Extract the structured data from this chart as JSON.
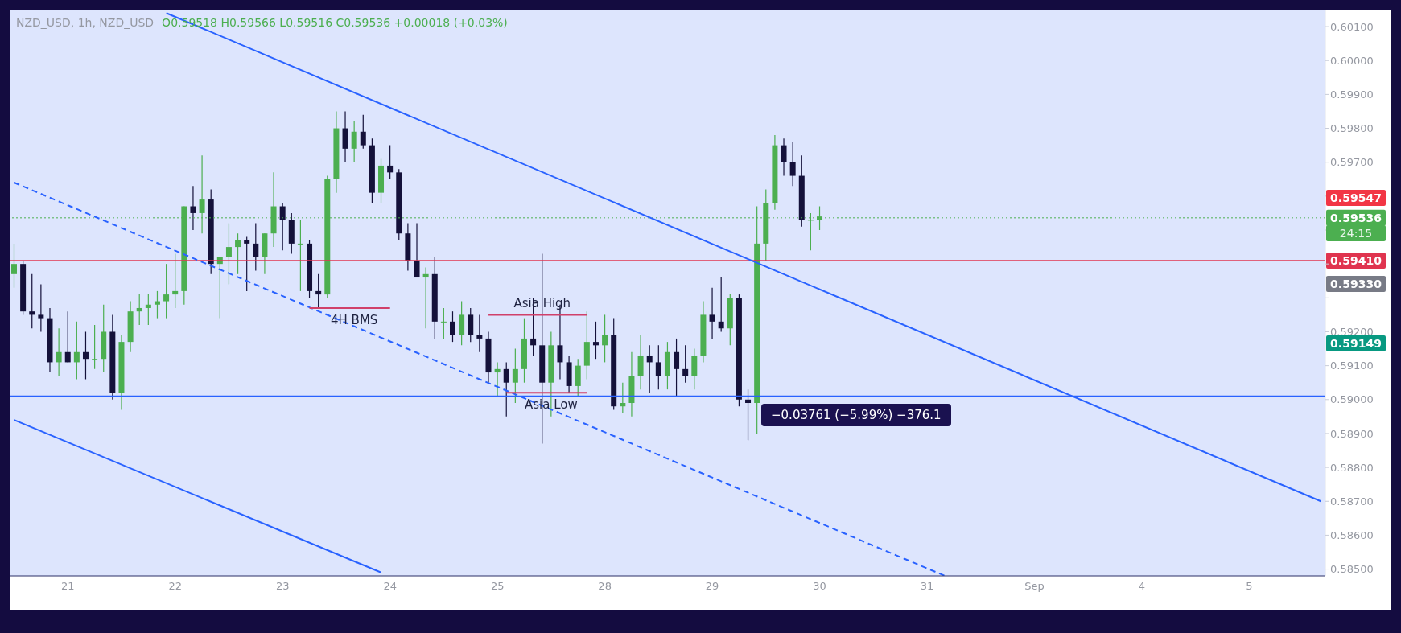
{
  "chart_data": {
    "type": "candlestick",
    "title": "NZD_USD, 1h, NZD_USD",
    "subtitle": "O0.59518 H0.59566 L0.59516 C0.59536 +0.00018 (+0.03%)",
    "categories": [
      null,
      null,
      null,
      null,
      null,
      null,
      "21",
      null,
      null,
      null,
      null,
      null,
      null,
      null,
      null,
      null,
      null,
      null,
      "22",
      null,
      null,
      null,
      null,
      null,
      null,
      null,
      null,
      null,
      null,
      null,
      "23",
      null,
      null,
      null,
      null,
      null,
      null,
      null,
      null,
      null,
      null,
      null,
      "24",
      null,
      null,
      null,
      null,
      null,
      null,
      null,
      null,
      null,
      null,
      null,
      "25",
      null,
      null,
      null,
      null,
      null,
      null,
      null,
      null,
      null,
      null,
      null,
      "28",
      null,
      null,
      null,
      null,
      null,
      null,
      null,
      null,
      null,
      null,
      null,
      "29",
      null,
      null,
      null,
      null,
      null,
      null,
      null,
      null,
      null,
      null,
      null,
      "30",
      null,
      null,
      null,
      null,
      null,
      null,
      null,
      null,
      null,
      null,
      null,
      "31",
      null,
      null,
      null,
      null,
      null,
      null,
      null,
      null,
      null,
      null,
      null,
      "Sep",
      null,
      null,
      null,
      null,
      null,
      null,
      null,
      null,
      null,
      null,
      null,
      "4",
      null,
      null,
      null,
      null,
      null,
      null,
      null,
      null,
      null,
      null,
      null,
      "5",
      null,
      null,
      null,
      null,
      null,
      null,
      null,
      null
    ],
    "ohlc": [
      [
        0.5937,
        0.5946,
        0.5933,
        0.594
      ],
      [
        0.594,
        0.5941,
        0.5925,
        0.5926
      ],
      [
        0.5926,
        0.5937,
        0.5921,
        0.5925
      ],
      [
        0.5925,
        0.5934,
        0.592,
        0.5924
      ],
      [
        0.5924,
        0.5927,
        0.5908,
        0.5911
      ],
      [
        0.5911,
        0.5921,
        0.5907,
        0.5914
      ],
      [
        0.5914,
        0.5926,
        0.5911,
        0.5911
      ],
      [
        0.5911,
        0.5923,
        0.5906,
        0.5914
      ],
      [
        0.5914,
        0.592,
        0.5906,
        0.5912
      ],
      [
        0.5912,
        0.5922,
        0.5909,
        0.5912
      ],
      [
        0.5912,
        0.5928,
        0.5908,
        0.592
      ],
      [
        0.592,
        0.5925,
        0.59,
        0.5902
      ],
      [
        0.5902,
        0.5919,
        0.5897,
        0.5917
      ],
      [
        0.5917,
        0.5929,
        0.5914,
        0.5926
      ],
      [
        0.5926,
        0.5931,
        0.5922,
        0.5927
      ],
      [
        0.5927,
        0.5931,
        0.5922,
        0.5928
      ],
      [
        0.5928,
        0.5932,
        0.5924,
        0.5929
      ],
      [
        0.5929,
        0.594,
        0.5924,
        0.5931
      ],
      [
        0.5931,
        0.5943,
        0.5927,
        0.5932
      ],
      [
        0.5932,
        0.5957,
        0.5928,
        0.5957
      ],
      [
        0.5957,
        0.5963,
        0.595,
        0.5955
      ],
      [
        0.5955,
        0.5972,
        0.5949,
        0.5959
      ],
      [
        0.5959,
        0.5962,
        0.5937,
        0.594
      ],
      [
        0.594,
        0.5942,
        0.5924,
        0.5942
      ],
      [
        0.5942,
        0.5952,
        0.5934,
        0.5945
      ],
      [
        0.5945,
        0.5949,
        0.5937,
        0.5947
      ],
      [
        0.5947,
        0.5948,
        0.5932,
        0.5946
      ],
      [
        0.5946,
        0.5952,
        0.5938,
        0.5942
      ],
      [
        0.5942,
        0.5949,
        0.5937,
        0.5949
      ],
      [
        0.5949,
        0.5967,
        0.5945,
        0.5957
      ],
      [
        0.5957,
        0.5958,
        0.5944,
        0.5953
      ],
      [
        0.5953,
        0.5955,
        0.5943,
        0.5946
      ],
      [
        0.5946,
        0.5953,
        0.5932,
        0.5946
      ],
      [
        0.5946,
        0.5947,
        0.593,
        0.5932
      ],
      [
        0.5932,
        0.5937,
        0.5927,
        0.5931
      ],
      [
        0.5931,
        0.5966,
        0.593,
        0.5965
      ],
      [
        0.5965,
        0.5985,
        0.5961,
        0.598
      ],
      [
        0.598,
        0.5985,
        0.597,
        0.5974
      ],
      [
        0.5974,
        0.5982,
        0.597,
        0.5979
      ],
      [
        0.5979,
        0.5984,
        0.5974,
        0.5975
      ],
      [
        0.5975,
        0.5977,
        0.5958,
        0.5961
      ],
      [
        0.5961,
        0.5971,
        0.5958,
        0.5969
      ],
      [
        0.5969,
        0.5975,
        0.5965,
        0.5967
      ],
      [
        0.5967,
        0.5968,
        0.5947,
        0.5949
      ],
      [
        0.5949,
        0.5952,
        0.5938,
        0.5941
      ],
      [
        0.5941,
        0.5952,
        0.5936,
        0.5936
      ],
      [
        0.5936,
        0.5939,
        0.5921,
        0.5937
      ],
      [
        0.5937,
        0.5942,
        0.5918,
        0.5923
      ],
      [
        0.5923,
        0.5927,
        0.5918,
        0.5923
      ],
      [
        0.5923,
        0.5926,
        0.5917,
        0.5919
      ],
      [
        0.5919,
        0.5929,
        0.5916,
        0.5925
      ],
      [
        0.5925,
        0.5927,
        0.5917,
        0.5919
      ],
      [
        0.5919,
        0.5925,
        0.5914,
        0.5918
      ],
      [
        0.5918,
        0.592,
        0.5905,
        0.5908
      ],
      [
        0.5908,
        0.5911,
        0.5901,
        0.5909
      ],
      [
        0.5909,
        0.5911,
        0.5895,
        0.5905
      ],
      [
        0.5905,
        0.5915,
        0.5899,
        0.5909
      ],
      [
        0.5909,
        0.5924,
        0.5905,
        0.5918
      ],
      [
        0.5918,
        0.593,
        0.5913,
        0.5916
      ],
      [
        0.5916,
        0.5943,
        0.5887,
        0.5905
      ],
      [
        0.5905,
        0.592,
        0.5895,
        0.5916
      ],
      [
        0.5916,
        0.5928,
        0.5906,
        0.5911
      ],
      [
        0.5911,
        0.5913,
        0.5902,
        0.5904
      ],
      [
        0.5904,
        0.5912,
        0.5901,
        0.591
      ],
      [
        0.591,
        0.5926,
        0.5906,
        0.5917
      ],
      [
        0.5917,
        0.5923,
        0.5912,
        0.5916
      ],
      [
        0.5916,
        0.5925,
        0.5911,
        0.5919
      ],
      [
        0.5919,
        0.5924,
        0.5897,
        0.5898
      ],
      [
        0.5898,
        0.5905,
        0.5896,
        0.5899
      ],
      [
        0.5899,
        0.5914,
        0.5895,
        0.5907
      ],
      [
        0.5907,
        0.5919,
        0.5903,
        0.5913
      ],
      [
        0.5913,
        0.5916,
        0.5902,
        0.5911
      ],
      [
        0.5911,
        0.5916,
        0.5903,
        0.5907
      ],
      [
        0.5907,
        0.5917,
        0.5903,
        0.5914
      ],
      [
        0.5914,
        0.5918,
        0.5901,
        0.5909
      ],
      [
        0.5909,
        0.5916,
        0.5905,
        0.5907
      ],
      [
        0.5907,
        0.5915,
        0.5903,
        0.5913
      ],
      [
        0.5913,
        0.5929,
        0.5911,
        0.5925
      ],
      [
        0.5925,
        0.5933,
        0.5918,
        0.5923
      ],
      [
        0.5923,
        0.5936,
        0.592,
        0.5921
      ],
      [
        0.5921,
        0.5931,
        0.5916,
        0.593
      ],
      [
        0.593,
        0.5931,
        0.5898,
        0.59
      ],
      [
        0.59,
        0.5903,
        0.5888,
        0.5899
      ],
      [
        0.5899,
        0.5957,
        0.589,
        0.5946
      ],
      [
        0.5946,
        0.5962,
        0.5941,
        0.5958
      ],
      [
        0.5958,
        0.5978,
        0.5956,
        0.5975
      ],
      [
        0.5975,
        0.5977,
        0.5966,
        0.597
      ],
      [
        0.597,
        0.5976,
        0.5963,
        0.5966
      ],
      [
        0.5966,
        0.5972,
        0.5951,
        0.5953
      ],
      [
        0.5953,
        0.5955,
        0.5944,
        0.5953
      ],
      [
        0.5953,
        0.5957,
        0.595,
        0.5954
      ],
      null,
      null,
      null,
      null,
      null,
      null,
      null,
      null,
      null,
      null,
      null,
      null,
      null,
      null,
      null,
      null,
      null,
      null,
      null,
      null,
      null,
      null,
      null,
      null,
      null,
      null,
      null,
      null,
      null,
      null,
      null,
      null,
      null,
      null,
      null,
      null,
      null,
      null,
      null,
      null,
      null,
      null,
      null,
      null,
      null,
      null,
      null,
      null,
      null,
      null,
      null,
      null,
      null,
      null,
      null,
      null
    ],
    "colors": [
      "#4caf50",
      "#14113a",
      "#14113a",
      "#14113a",
      "#14113a",
      "#4caf50",
      "#14113a",
      "#4caf50",
      "#14113a",
      "#4caf50",
      "#4caf50",
      "#14113a",
      "#4caf50",
      "#4caf50",
      "#4caf50",
      "#4caf50",
      "#4caf50",
      "#4caf50",
      "#4caf50",
      "#4caf50",
      "#14113a",
      "#4caf50",
      "#14113a",
      "#4caf50",
      "#4caf50",
      "#4caf50",
      "#14113a",
      "#14113a",
      "#4caf50",
      "#4caf50",
      "#14113a",
      "#14113a",
      "#4caf50",
      "#14113a",
      "#14113a",
      "#4caf50",
      "#4caf50",
      "#14113a",
      "#4caf50",
      "#14113a",
      "#14113a",
      "#4caf50",
      "#14113a",
      "#14113a",
      "#14113a",
      "#14113a",
      "#4caf50",
      "#14113a",
      "#4caf50",
      "#14113a",
      "#4caf50",
      "#14113a",
      "#14113a",
      "#14113a",
      "#4caf50",
      "#14113a",
      "#4caf50",
      "#4caf50",
      "#14113a",
      "#14113a",
      "#4caf50",
      "#14113a",
      "#14113a",
      "#4caf50",
      "#4caf50",
      "#14113a",
      "#4caf50",
      "#14113a",
      "#4caf50",
      "#4caf50",
      "#4caf50",
      "#14113a",
      "#14113a",
      "#4caf50",
      "#14113a",
      "#14113a",
      "#4caf50",
      "#4caf50",
      "#14113a",
      "#14113a",
      "#4caf50",
      "#14113a",
      "#14113a",
      "#4caf50",
      "#4caf50",
      "#4caf50",
      "#14113a",
      "#14113a",
      "#14113a",
      "#4caf50",
      "#4caf50",
      null,
      null,
      null,
      null,
      null,
      null,
      null,
      null,
      null,
      null,
      null,
      null,
      null,
      null,
      null,
      null,
      null,
      null,
      null,
      null,
      null,
      null,
      null,
      null,
      null,
      null,
      null,
      null,
      null,
      null,
      null,
      null,
      null,
      null,
      null,
      null,
      null,
      null,
      null,
      null,
      null,
      null,
      null,
      null,
      null,
      null,
      null,
      null,
      null,
      null,
      null,
      null,
      null,
      null,
      null,
      null
    ],
    "series": [
      {
        "type": "line",
        "color": "#2962ff",
        "line_style": "solid",
        "values": [
          null,
          null,
          null,
          null,
          null,
          null,
          null,
          null,
          null,
          null,
          null,
          null,
          null,
          null,
          null,
          null,
          null,
          0.6014,
          null,
          null,
          null,
          null,
          null,
          null,
          null,
          null,
          null,
          null,
          null,
          null,
          null,
          null,
          null,
          null,
          null,
          null,
          null,
          null,
          null,
          null,
          null,
          null,
          null,
          null,
          null,
          null,
          null,
          null,
          null,
          null,
          null,
          null,
          null,
          null,
          null,
          null,
          null,
          null,
          null,
          null,
          null,
          null,
          null,
          null,
          null,
          null,
          null,
          null,
          null,
          null,
          null,
          null,
          null,
          null,
          null,
          null,
          null,
          null,
          null,
          null,
          null,
          null,
          null,
          null,
          null,
          null,
          null,
          null,
          null,
          null,
          null,
          null,
          null,
          null,
          null,
          null,
          null,
          null,
          null,
          null,
          null,
          null,
          null,
          null,
          null,
          null,
          null,
          null,
          null,
          null,
          null,
          null,
          null,
          null,
          null,
          null,
          null,
          null,
          null,
          null,
          null,
          null,
          null,
          null,
          null,
          null,
          null,
          null,
          null,
          null,
          null,
          null,
          null,
          null,
          null,
          null,
          null,
          null,
          null,
          null,
          null,
          null,
          null,
          null,
          null,
          null,
          0.587
        ]
      },
      {
        "type": "line",
        "color": "#2962ff",
        "line_style": "solid",
        "values": [
          0.5894,
          null,
          null,
          null,
          null,
          null,
          null,
          null,
          null,
          null,
          null,
          null,
          null,
          null,
          null,
          null,
          null,
          null,
          null,
          null,
          null,
          null,
          null,
          null,
          null,
          null,
          null,
          null,
          null,
          null,
          null,
          null,
          null,
          null,
          null,
          null,
          null,
          null,
          null,
          null,
          null,
          0.5849,
          null,
          null,
          null,
          null,
          null,
          null,
          null,
          null,
          null,
          null,
          null,
          null,
          null,
          null,
          null,
          null,
          null,
          null,
          null,
          null,
          null,
          null,
          null,
          null,
          null,
          null,
          null,
          null,
          null,
          null,
          null,
          null,
          null,
          null,
          null,
          null,
          null,
          null,
          null,
          null,
          null,
          null,
          null,
          null,
          null,
          null,
          null,
          null,
          null,
          null,
          null,
          null,
          null,
          null,
          null,
          null,
          null,
          null,
          null,
          null,
          null,
          null,
          null,
          null,
          null,
          null,
          null,
          null,
          null,
          null,
          null,
          null,
          null,
          null,
          null,
          null,
          null,
          null,
          null,
          null,
          null,
          null,
          null,
          null,
          null,
          null,
          null,
          null,
          null,
          null,
          null,
          null,
          null,
          null,
          null,
          null,
          null,
          null,
          null,
          null,
          null,
          null,
          null,
          null,
          null
        ]
      },
      {
        "type": "line",
        "color": "#2962ff",
        "line_style": "dashed",
        "values": [
          0.5964,
          null,
          null,
          null,
          null,
          null,
          null,
          null,
          null,
          null,
          null,
          null,
          null,
          null,
          null,
          null,
          null,
          null,
          null,
          null,
          null,
          null,
          null,
          null,
          null,
          null,
          null,
          null,
          null,
          null,
          null,
          null,
          null,
          null,
          null,
          null,
          null,
          null,
          null,
          null,
          null,
          null,
          null,
          null,
          null,
          null,
          null,
          null,
          null,
          null,
          null,
          null,
          null,
          null,
          null,
          null,
          null,
          null,
          null,
          null,
          null,
          null,
          null,
          null,
          null,
          null,
          null,
          null,
          null,
          null,
          null,
          null,
          null,
          null,
          null,
          null,
          null,
          null,
          null,
          null,
          null,
          null,
          null,
          null,
          null,
          null,
          null,
          null,
          null,
          null,
          null,
          null,
          null,
          null,
          null,
          null,
          null,
          null,
          null,
          null,
          null,
          null,
          null,
          null,
          0.5848,
          null,
          null,
          null,
          null,
          null,
          null,
          null,
          null,
          null,
          null,
          null,
          null,
          null,
          null,
          null,
          null,
          null,
          null,
          null,
          null,
          null,
          null,
          null,
          null,
          null,
          null,
          null,
          null,
          null,
          null,
          null,
          null,
          null,
          null,
          null,
          null,
          null,
          null,
          null,
          null,
          null,
          null
        ]
      },
      {
        "type": "line",
        "name": "4H BMS",
        "color": "#d0406a",
        "line_style": "solid",
        "values": [
          null,
          null,
          null,
          null,
          null,
          null,
          null,
          null,
          null,
          null,
          null,
          null,
          null,
          null,
          null,
          null,
          null,
          null,
          null,
          null,
          null,
          null,
          null,
          null,
          null,
          null,
          null,
          null,
          null,
          null,
          null,
          null,
          null,
          0.5927,
          0.5927,
          0.5927,
          0.5927,
          0.5927,
          0.5927,
          0.5927,
          0.5927,
          0.5927,
          0.5927,
          null,
          null,
          null,
          null,
          null,
          null,
          null,
          null,
          null,
          null,
          null,
          null,
          null,
          null,
          null,
          null,
          null,
          null,
          null,
          null,
          null,
          null,
          null,
          null,
          null,
          null,
          null,
          null,
          null,
          null,
          null,
          null,
          null,
          null,
          null,
          null,
          null,
          null,
          null,
          null,
          null,
          null,
          null,
          null,
          null,
          null,
          null,
          null,
          null,
          null,
          null,
          null,
          null,
          null,
          null,
          null,
          null,
          null,
          null,
          null,
          null,
          null,
          null,
          null,
          null,
          null,
          null,
          null,
          null,
          null,
          null,
          null,
          null,
          null,
          null,
          null,
          null,
          null,
          null,
          null,
          null,
          null,
          null,
          null,
          null,
          null,
          null,
          null,
          null,
          null,
          null,
          null,
          null,
          null,
          null,
          null,
          null,
          null,
          null,
          null,
          null,
          null,
          null,
          null
        ]
      },
      {
        "type": "line",
        "name": "Asia High",
        "color": "#d0406a",
        "line_style": "solid",
        "values": [
          null,
          null,
          null,
          null,
          null,
          null,
          null,
          null,
          null,
          null,
          null,
          null,
          null,
          null,
          null,
          null,
          null,
          null,
          null,
          null,
          null,
          null,
          null,
          null,
          null,
          null,
          null,
          null,
          null,
          null,
          null,
          null,
          null,
          null,
          null,
          null,
          null,
          null,
          null,
          null,
          null,
          null,
          null,
          null,
          null,
          null,
          null,
          null,
          null,
          null,
          null,
          null,
          null,
          0.5925,
          0.5925,
          0.5925,
          0.5925,
          0.5925,
          0.5925,
          0.5925,
          0.5925,
          0.5925,
          0.5925,
          0.5925,
          0.5925,
          null,
          null,
          null,
          null,
          null,
          null,
          null,
          null,
          null,
          null,
          null,
          null,
          null,
          null,
          null,
          null,
          null,
          null,
          null,
          null,
          null,
          null,
          null,
          null,
          null,
          null,
          null,
          null,
          null,
          null,
          null,
          null,
          null,
          null,
          null,
          null,
          null,
          null,
          null,
          null,
          null,
          null,
          null,
          null,
          null,
          null,
          null,
          null,
          null,
          null,
          null,
          null,
          null,
          null,
          null,
          null,
          null,
          null,
          null,
          null,
          null,
          null,
          null,
          null,
          null,
          null,
          null,
          null,
          null,
          null,
          null,
          null,
          null,
          null,
          null,
          null,
          null,
          null,
          null,
          null,
          null,
          null
        ]
      },
      {
        "type": "line",
        "name": "Asia Low",
        "color": "#d0406a",
        "line_style": "solid",
        "values": [
          null,
          null,
          null,
          null,
          null,
          null,
          null,
          null,
          null,
          null,
          null,
          null,
          null,
          null,
          null,
          null,
          null,
          null,
          null,
          null,
          null,
          null,
          null,
          null,
          null,
          null,
          null,
          null,
          null,
          null,
          null,
          null,
          null,
          null,
          null,
          null,
          null,
          null,
          null,
          null,
          null,
          null,
          null,
          null,
          null,
          null,
          null,
          null,
          null,
          null,
          null,
          null,
          null,
          null,
          null,
          0.5902,
          0.5902,
          0.5902,
          0.5902,
          0.5902,
          0.5902,
          0.5902,
          0.5902,
          0.5902,
          0.5902,
          null,
          null,
          null,
          null,
          null,
          null,
          null,
          null,
          null,
          null,
          null,
          null,
          null,
          null,
          null,
          null,
          null,
          null,
          null,
          null,
          null,
          null,
          null,
          null,
          null,
          null,
          null,
          null,
          null,
          null,
          null,
          null,
          null,
          null,
          null,
          null,
          null,
          null,
          null,
          null,
          null,
          null,
          null,
          null,
          null,
          null,
          null,
          null,
          null,
          null,
          null,
          null,
          null,
          null,
          null,
          null,
          null,
          null,
          null,
          null,
          null,
          null,
          null,
          null,
          null,
          null,
          null,
          null,
          null,
          null,
          null,
          null,
          null,
          null,
          null,
          null,
          null,
          null,
          null,
          null,
          null,
          null
        ]
      }
    ],
    "ylim": [
      0.5848,
      0.6015
    ],
    "yticks": [
      {
        "value": 0.585,
        "label": "0.58500"
      },
      {
        "value": 0.586,
        "label": "0.58600"
      },
      {
        "value": 0.587,
        "label": "0.58700"
      },
      {
        "value": 0.588,
        "label": "0.58800"
      },
      {
        "value": 0.589,
        "label": "0.58900"
      },
      {
        "value": 0.59,
        "label": "0.59000"
      },
      {
        "value": 0.591,
        "label": "0.59100"
      },
      {
        "value": 0.592,
        "label": "0.59200"
      },
      {
        "value": 0.593,
        "label": null
      },
      {
        "value": 0.594,
        "label": null
      },
      {
        "value": 0.595,
        "label": null
      },
      {
        "value": 0.596,
        "label": null
      },
      {
        "value": 0.597,
        "label": "0.59700"
      },
      {
        "value": 0.598,
        "label": "0.59800"
      },
      {
        "value": 0.599,
        "label": "0.59900"
      },
      {
        "value": 0.6,
        "label": "0.60000"
      },
      {
        "value": 0.601,
        "label": "0.60100"
      }
    ],
    "ref_lines": [
      {
        "axis": "y",
        "value": 0.5941,
        "label": "0.59410",
        "color": "#e0344f",
        "line_style": "solid"
      },
      {
        "axis": "y",
        "value": 0.59536,
        "label": "0.59536",
        "color": "#4caf50",
        "line_style": "dotted"
      },
      {
        "axis": "y",
        "value": 0.5901,
        "color": "#2962ff",
        "line_style": "solid"
      }
    ],
    "annotations": [
      "−0.03761 (−5.99%) −376.1",
      "0.59547",
      "0.59330",
      "0.59149",
      "24:15"
    ]
  }
}
